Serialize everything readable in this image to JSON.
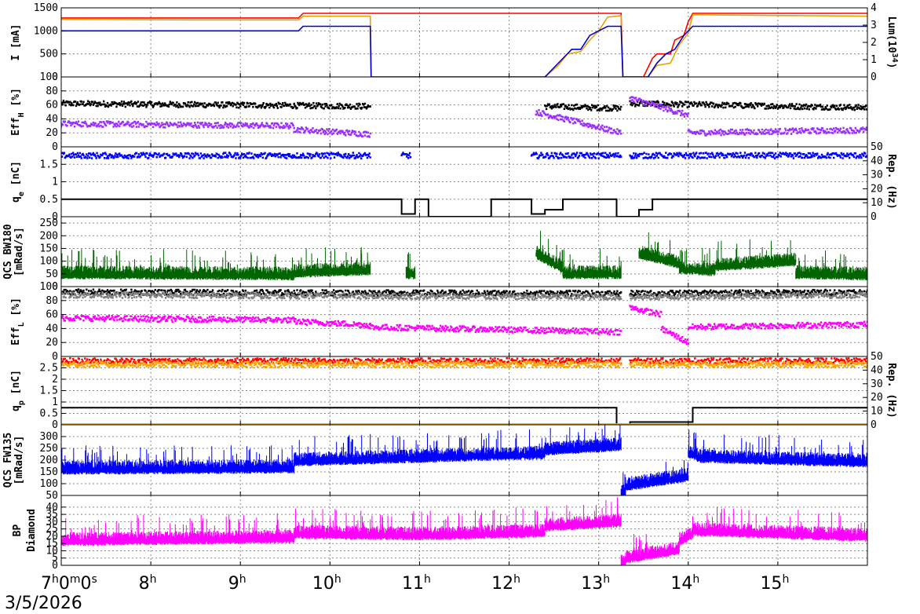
{
  "date": "3/5/2026",
  "x_tick_labels": [
    {
      "hour": 7,
      "base": "7",
      "sup": "h",
      "base2": "0",
      "sup2": "m",
      "base3": "0",
      "sup3": "s"
    },
    {
      "hour": 8,
      "base": "8",
      "sup": "h"
    },
    {
      "hour": 9,
      "base": "9",
      "sup": "h"
    },
    {
      "hour": 10,
      "base": "10",
      "sup": "h"
    },
    {
      "hour": 11,
      "base": "11",
      "sup": "h"
    },
    {
      "hour": 12,
      "base": "12",
      "sup": "h"
    },
    {
      "hour": 13,
      "base": "13",
      "sup": "h"
    },
    {
      "hour": 14,
      "base": "14",
      "sup": "h"
    },
    {
      "hour": 15,
      "base": "15",
      "sup": "h"
    }
  ],
  "chart_data": [
    {
      "id": "current",
      "type": "line",
      "ylabel": "I [mA]",
      "ylim": [
        0,
        1500
      ],
      "yticks": [
        "0",
        "500",
        "1000",
        "1500"
      ],
      "y2label": "Lum(10^34)",
      "y2lim": [
        0,
        4
      ],
      "y2ticks": [
        "0",
        "1",
        "2",
        "3",
        "4"
      ],
      "series": [
        {
          "color": "#ff0000",
          "points": [
            [
              7,
              1280
            ],
            [
              9.65,
              1280
            ],
            [
              9.7,
              1380
            ],
            [
              10.45,
              1380
            ],
            [
              13.25,
              1380
            ],
            [
              13.27,
              0
            ],
            [
              13.5,
              0
            ],
            [
              13.6,
              400
            ],
            [
              13.65,
              500
            ],
            [
              13.8,
              500
            ],
            [
              13.85,
              800
            ],
            [
              13.95,
              900
            ],
            [
              14.0,
              1200
            ],
            [
              14.05,
              1380
            ],
            [
              16,
              1380
            ]
          ]
        },
        {
          "color": "#e8a000",
          "points": [
            [
              7,
              1250
            ],
            [
              8.5,
              1240
            ],
            [
              9.65,
              1240
            ],
            [
              9.7,
              1320
            ],
            [
              10.45,
              1320
            ],
            [
              10.46,
              0
            ],
            [
              12.4,
              0
            ],
            [
              12.55,
              250
            ],
            [
              12.65,
              500
            ],
            [
              12.8,
              550
            ],
            [
              12.9,
              800
            ],
            [
              13.0,
              1000
            ],
            [
              13.1,
              1300
            ],
            [
              13.25,
              1330
            ],
            [
              13.27,
              0
            ],
            [
              13.55,
              0
            ],
            [
              13.65,
              250
            ],
            [
              13.8,
              300
            ],
            [
              13.9,
              700
            ],
            [
              14.0,
              950
            ],
            [
              14.05,
              1350
            ],
            [
              16,
              1320
            ]
          ]
        },
        {
          "color": "#0000cc",
          "points": [
            [
              7,
              1000
            ],
            [
              9.65,
              1000
            ],
            [
              9.7,
              1100
            ],
            [
              10.45,
              1100
            ],
            [
              10.46,
              0
            ],
            [
              12.4,
              0
            ],
            [
              12.6,
              400
            ],
            [
              12.7,
              600
            ],
            [
              12.8,
              600
            ],
            [
              12.9,
              900
            ],
            [
              13.0,
              1000
            ],
            [
              13.1,
              1100
            ],
            [
              13.25,
              1100
            ],
            [
              13.27,
              0
            ],
            [
              13.55,
              0
            ],
            [
              13.65,
              300
            ],
            [
              13.75,
              500
            ],
            [
              13.85,
              600
            ],
            [
              13.95,
              900
            ],
            [
              14.05,
              1100
            ],
            [
              16,
              1100
            ]
          ]
        }
      ]
    },
    {
      "id": "effh",
      "type": "scatter",
      "ylabel": "Eff_H [%]",
      "ylim": [
        0,
        100
      ],
      "yticks": [
        "0",
        "20",
        "40",
        "60",
        "80",
        "100"
      ],
      "series": [
        {
          "color": "#000000",
          "segments": [
            [
              7,
              10.45,
              62,
              58
            ],
            [
              12.4,
              13.25,
              58,
              55
            ],
            [
              13.35,
              16,
              62,
              56
            ]
          ]
        },
        {
          "color": "#9b30ff",
          "segments": [
            [
              7,
              9.6,
              33,
              30
            ],
            [
              9.6,
              10.45,
              25,
              18
            ],
            [
              12.3,
              13.25,
              50,
              20
            ],
            [
              13.35,
              14.0,
              70,
              45
            ],
            [
              14.0,
              16,
              20,
              24
            ]
          ]
        }
      ]
    },
    {
      "id": "qe",
      "type": "scatter",
      "ylabel": "q_e [nC]",
      "ylim": [
        0,
        2
      ],
      "yticks": [
        "0",
        "0.5",
        "1",
        "1.5"
      ],
      "y2label": "Rep. (Hz)",
      "y2lim": [
        0,
        50
      ],
      "y2ticks": [
        "0",
        "10",
        "20",
        "30",
        "40",
        "50"
      ],
      "series": [
        {
          "color": "#0000ff",
          "segments": [
            [
              7,
              10.45,
              1.75,
              1.75
            ],
            [
              10.8,
              10.9,
              1.75,
              1.75
            ],
            [
              12.25,
              13.25,
              1.75,
              1.75
            ],
            [
              13.35,
              16,
              1.75,
              1.75
            ]
          ]
        },
        {
          "color": "#000000",
          "step_y2": [
            [
              7,
              12.5
            ],
            [
              10.8,
              2
            ],
            [
              10.95,
              12.5
            ],
            [
              11.1,
              0
            ],
            [
              11.8,
              12.5
            ],
            [
              12.25,
              2
            ],
            [
              12.4,
              5
            ],
            [
              12.6,
              12.5
            ],
            [
              13.2,
              0
            ],
            [
              13.45,
              5
            ],
            [
              13.6,
              12.5
            ],
            [
              16,
              12.5
            ]
          ]
        }
      ]
    },
    {
      "id": "qcs_bw180",
      "type": "bar",
      "ylabel": "QCS BW180 [mRad/s]",
      "ylim": [
        0,
        275
      ],
      "yticks": [
        "0",
        "50",
        "100",
        "150",
        "200",
        "250"
      ],
      "series": [
        {
          "color": "#006400",
          "segments": [
            [
              7,
              9.6,
              40,
              35
            ],
            [
              9.6,
              10.45,
              45,
              55
            ],
            [
              10.85,
              10.95,
              40,
              40
            ],
            [
              12.3,
              12.6,
              120,
              60
            ],
            [
              12.6,
              13.25,
              40,
              40
            ],
            [
              13.45,
              13.9,
              120,
              80
            ],
            [
              13.9,
              14.3,
              60,
              50
            ],
            [
              14.3,
              15.2,
              70,
              90
            ],
            [
              15.2,
              16,
              40,
              35
            ]
          ]
        }
      ]
    },
    {
      "id": "effl",
      "type": "scatter",
      "ylabel": "Eff_L [%]",
      "ylim": [
        0,
        100
      ],
      "yticks": [
        "0",
        "20",
        "40",
        "60",
        "80",
        "100"
      ],
      "series": [
        {
          "color": "#000000",
          "segments": [
            [
              7,
              13.25,
              92,
              90
            ],
            [
              13.35,
              16,
              90,
              92
            ]
          ]
        },
        {
          "color": "#808080",
          "segments": [
            [
              7,
              13.25,
              88,
              85
            ],
            [
              13.35,
              16,
              85,
              88
            ]
          ]
        },
        {
          "color": "#ff00ff",
          "segments": [
            [
              7,
              9.6,
              55,
              52
            ],
            [
              9.6,
              10.45,
              50,
              45
            ],
            [
              10.45,
              13.25,
              42,
              35
            ],
            [
              13.35,
              13.7,
              70,
              60
            ],
            [
              13.7,
              14.0,
              40,
              20
            ],
            [
              14.0,
              16,
              42,
              46
            ]
          ]
        }
      ]
    },
    {
      "id": "qp",
      "type": "scatter",
      "ylabel": "q_p [nC]",
      "ylim": [
        0,
        3
      ],
      "yticks": [
        "0",
        "0.5",
        "1",
        "1.5",
        "2",
        "2.5"
      ],
      "y2label": "Rep. (Hz)",
      "y2lim": [
        0,
        50
      ],
      "y2ticks": [
        "0",
        "10",
        "20",
        "30",
        "40",
        "50"
      ],
      "series": [
        {
          "color": "#ff0000",
          "segments": [
            [
              7,
              13.25,
              2.8,
              2.8
            ],
            [
              13.35,
              16,
              2.8,
              2.8
            ]
          ]
        },
        {
          "color": "#ffa500",
          "segments": [
            [
              7,
              13.25,
              2.65,
              2.65
            ],
            [
              13.35,
              16,
              2.65,
              2.65
            ]
          ]
        },
        {
          "color": "#000000",
          "step_y2": [
            [
              7,
              12.5
            ],
            [
              13.2,
              0
            ],
            [
              13.35,
              2
            ],
            [
              14.05,
              12.5
            ],
            [
              16,
              12.5
            ]
          ]
        },
        {
          "color": "#ffa500",
          "baseline_y2": 0.5
        }
      ]
    },
    {
      "id": "qcs_fw135",
      "type": "bar",
      "ylabel": "QCS FW135 [mRad/s]",
      "ylim": [
        50,
        350
      ],
      "yticks": [
        "50",
        "100",
        "150",
        "200",
        "250",
        "300"
      ],
      "series": [
        {
          "color": "#0000ff",
          "segments": [
            [
              7,
              9.6,
              150,
              155
            ],
            [
              9.6,
              11.0,
              185,
              200
            ],
            [
              11.0,
              12.4,
              200,
              215
            ],
            [
              12.4,
              13.25,
              230,
              250
            ],
            [
              13.25,
              13.3,
              50,
              50
            ],
            [
              13.3,
              14.0,
              80,
              120
            ],
            [
              14.0,
              14.1,
              220,
              210
            ],
            [
              14.1,
              16,
              200,
              180
            ]
          ]
        }
      ]
    },
    {
      "id": "bp_diamond",
      "type": "bar",
      "ylabel": "BP Diamond",
      "ylim": [
        0,
        48
      ],
      "yticks": [
        "0",
        "5",
        "10",
        "15",
        "20",
        "25",
        "30",
        "35",
        "40"
      ],
      "series": [
        {
          "color": "#ff00ff",
          "segments": [
            [
              7,
              9.6,
              15,
              17
            ],
            [
              9.6,
              11.0,
              20,
              19
            ],
            [
              11.0,
              12.4,
              19,
              21
            ],
            [
              12.4,
              13.25,
              25,
              28
            ],
            [
              13.25,
              13.3,
              0,
              0
            ],
            [
              13.3,
              13.9,
              3,
              9
            ],
            [
              13.9,
              14.05,
              15,
              20
            ],
            [
              14.05,
              16,
              22,
              18
            ]
          ]
        }
      ]
    }
  ]
}
